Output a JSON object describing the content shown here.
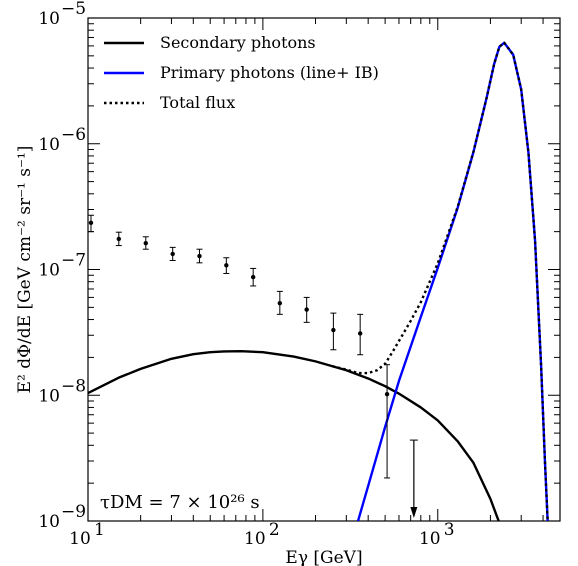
{
  "chart_data": {
    "type": "line",
    "xscale": "log",
    "yscale": "log",
    "xlim": [
      10,
      5000
    ],
    "ylim": [
      1e-09,
      1e-05
    ],
    "xlabel": "Eγ [GeV]",
    "ylabel": "E² dΦ/dE [GeV cm⁻² sr⁻¹ s⁻¹]",
    "x_ticks": [
      {
        "value": 10,
        "base": "10",
        "exp": "1"
      },
      {
        "value": 100,
        "base": "10",
        "exp": "2"
      },
      {
        "value": 1000,
        "base": "10",
        "exp": "3"
      }
    ],
    "y_ticks": [
      {
        "value": 1e-09,
        "base": "10",
        "exp": "−9"
      },
      {
        "value": 1e-08,
        "base": "10",
        "exp": "−8"
      },
      {
        "value": 1e-07,
        "base": "10",
        "exp": "−7"
      },
      {
        "value": 1e-06,
        "base": "10",
        "exp": "−6"
      },
      {
        "value": 1e-05,
        "base": "10",
        "exp": "−5"
      }
    ],
    "legend_position": "top-left",
    "annotation": "τDM = 7 × 10²⁶ s",
    "series": [
      {
        "name": "Secondary photons",
        "color": "#000000",
        "style": "solid",
        "x": [
          10,
          15,
          20,
          30,
          40,
          50,
          60,
          75,
          100,
          150,
          200,
          300,
          400,
          500,
          600,
          800,
          1000,
          1300,
          1600,
          2000,
          2200,
          2300
        ],
        "y": [
          1.04e-08,
          1.38e-08,
          1.62e-08,
          1.95e-08,
          2.12e-08,
          2.2e-08,
          2.23e-08,
          2.24e-08,
          2.2e-08,
          2.03e-08,
          1.86e-08,
          1.58e-08,
          1.36e-08,
          1.18e-08,
          1.03e-08,
          8e-09,
          6.3e-09,
          4.3e-09,
          2.9e-09,
          1.5e-09,
          1.05e-09,
          9e-10
        ]
      },
      {
        "name": "Primary photons (line+ IB)",
        "color": "#0000ff",
        "style": "solid",
        "x": [
          350,
          400,
          500,
          600,
          800,
          1000,
          1300,
          1600,
          1900,
          2100,
          2250,
          2400,
          2700,
          3000,
          3300,
          3600,
          3900,
          4100,
          4250
        ],
        "y": [
          1e-09,
          1.9e-09,
          5.6e-09,
          1.3e-08,
          4.2e-08,
          1.03e-07,
          3.1e-07,
          8.6e-07,
          2.3e-06,
          4.3e-06,
          5.9e-06,
          6.35e-06,
          5.1e-06,
          2.7e-06,
          8.5e-07,
          1.7e-07,
          1.7e-08,
          3e-09,
          1e-09
        ]
      },
      {
        "name": "Total flux",
        "color": "#000000",
        "style": "dotted",
        "x": [
          250,
          300,
          350,
          400,
          450,
          500,
          550,
          600,
          700,
          800,
          1000,
          1300,
          1600,
          1900,
          2100,
          2250,
          2400,
          2700,
          3000,
          3300,
          3600,
          3900,
          4100,
          4250
        ],
        "y": [
          1.7e-08,
          1.6e-08,
          1.5e-08,
          1.5e-08,
          1.58e-08,
          1.78e-08,
          2.2e-08,
          2.7e-08,
          3.9e-08,
          5.5e-08,
          1.12e-07,
          3.15e-07,
          8.65e-07,
          2.3e-06,
          4.3e-06,
          5.9e-06,
          6.35e-06,
          5.1e-06,
          2.7e-06,
          8.5e-07,
          1.7e-07,
          1.7e-08,
          3e-09,
          1e-09
        ]
      }
    ],
    "data_points": [
      {
        "x": 10.4,
        "y": 2.35e-07,
        "lo": 2e-07,
        "hi": 2.7e-07
      },
      {
        "x": 15.0,
        "y": 1.75e-07,
        "lo": 1.55e-07,
        "hi": 1.98e-07
      },
      {
        "x": 21.4,
        "y": 1.62e-07,
        "lo": 1.45e-07,
        "hi": 1.82e-07
      },
      {
        "x": 30.5,
        "y": 1.33e-07,
        "lo": 1.18e-07,
        "hi": 1.5e-07
      },
      {
        "x": 43.4,
        "y": 1.28e-07,
        "lo": 1.13e-07,
        "hi": 1.45e-07
      },
      {
        "x": 61.8,
        "y": 1.08e-07,
        "lo": 9.3e-08,
        "hi": 1.24e-07
      },
      {
        "x": 88.0,
        "y": 8.7e-08,
        "lo": 7.4e-08,
        "hi": 1.02e-07
      },
      {
        "x": 125.0,
        "y": 5.4e-08,
        "lo": 4.4e-08,
        "hi": 6.7e-08
      },
      {
        "x": 178.0,
        "y": 4.8e-08,
        "lo": 3.8e-08,
        "hi": 6e-08
      },
      {
        "x": 253.0,
        "y": 3.3e-08,
        "lo": 2.3e-08,
        "hi": 4.5e-08
      },
      {
        "x": 360.0,
        "y": 3.1e-08,
        "lo": 2.1e-08,
        "hi": 4.4e-08
      },
      {
        "x": 513.0,
        "y": 1.02e-08,
        "lo": 2.2e-09,
        "hi": 1.75e-08
      }
    ],
    "upper_limit": {
      "x": 730,
      "y": 4.4e-09
    }
  }
}
